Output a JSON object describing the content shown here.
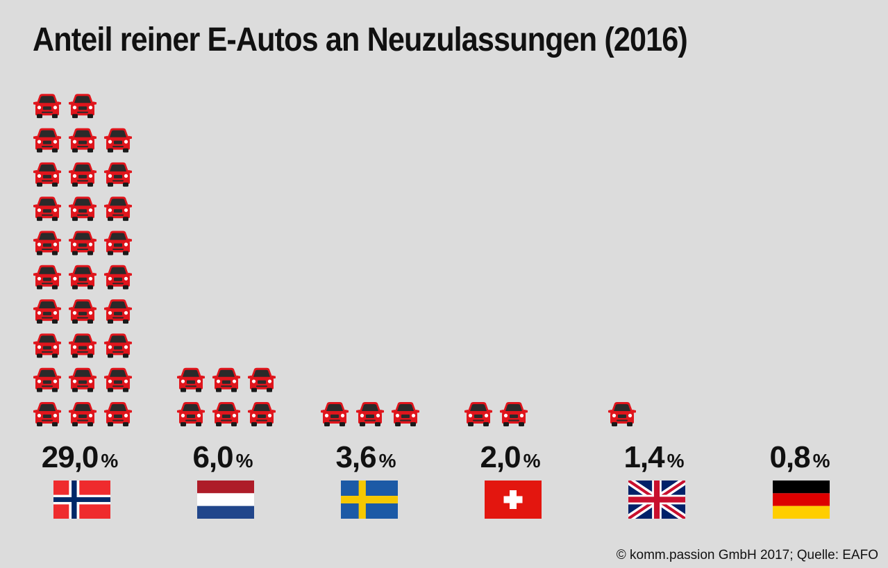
{
  "title": "Anteil reiner E-Autos an Neuzulassungen (2016)",
  "source": "© komm.passion GmbH 2017; Quelle: EAFO",
  "colors": {
    "background": "#dcdcdc",
    "car": "#e0151c",
    "text": "#111111"
  },
  "icon": "car-icon",
  "countries": [
    {
      "flag": "norway-flag",
      "value_text": "29,0",
      "unit": "%"
    },
    {
      "flag": "netherlands-flag",
      "value_text": "6,0",
      "unit": "%"
    },
    {
      "flag": "sweden-flag",
      "value_text": "3,6",
      "unit": "%"
    },
    {
      "flag": "switzerland-flag",
      "value_text": "2,0",
      "unit": "%"
    },
    {
      "flag": "uk-flag",
      "value_text": "1,4",
      "unit": "%"
    },
    {
      "flag": "germany-flag",
      "value_text": "0,8",
      "unit": "%"
    }
  ],
  "chart_data": {
    "type": "bar",
    "title": "Anteil reiner E-Autos an Neuzulassungen (2016)",
    "categories": [
      "Norwegen",
      "Niederlande",
      "Schweden",
      "Schweiz",
      "Großbritannien",
      "Deutschland"
    ],
    "values": [
      29.0,
      6.0,
      3.6,
      2.0,
      1.4,
      0.8
    ],
    "unit": "%",
    "units_per_icon": 1,
    "xlabel": "",
    "ylabel": "",
    "legend": "none"
  }
}
